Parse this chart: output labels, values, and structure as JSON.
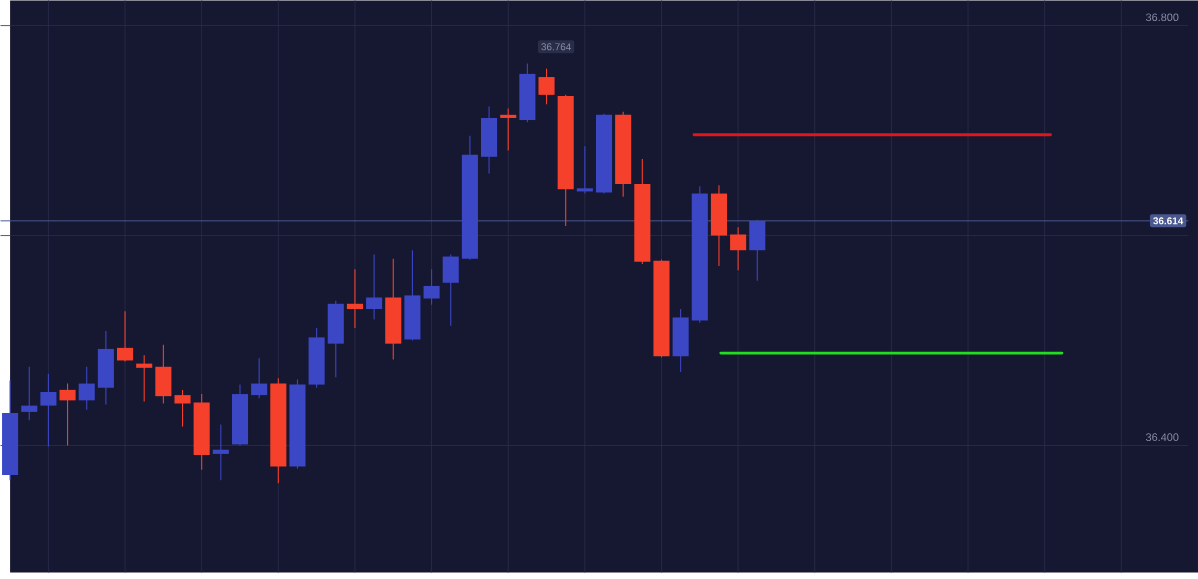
{
  "chart_data": {
    "type": "candlestick",
    "categories": [
      null,
      null,
      null,
      null,
      null,
      null,
      null,
      null,
      null,
      null,
      null,
      null,
      null,
      null,
      null,
      null,
      null,
      null,
      null,
      null,
      null,
      null,
      null,
      null,
      null,
      null,
      null,
      null,
      null,
      null,
      null,
      null,
      null,
      null,
      null,
      null,
      null,
      null,
      null,
      null,
      null,
      null,
      null,
      null,
      null,
      null,
      null,
      null,
      null,
      null,
      null,
      null,
      null,
      null,
      null,
      null,
      null,
      null,
      null,
      null,
      null,
      null
    ],
    "ohlc": [
      [
        36.372,
        36.462,
        36.367,
        36.431
      ],
      [
        36.432,
        36.475,
        36.424,
        36.438
      ],
      [
        36.438,
        36.468,
        36.399,
        36.451
      ],
      [
        36.453,
        36.459,
        36.4,
        36.443
      ],
      [
        36.443,
        36.475,
        36.434,
        36.459
      ],
      [
        36.455,
        36.509,
        36.439,
        36.492
      ],
      [
        36.493,
        36.528,
        36.48,
        36.481
      ],
      [
        36.478,
        36.486,
        36.442,
        36.474
      ],
      [
        36.475,
        36.496,
        36.44,
        36.447
      ],
      [
        36.448,
        36.453,
        36.418,
        36.44
      ],
      [
        36.441,
        36.449,
        36.377,
        36.391
      ],
      [
        36.392,
        36.42,
        36.367,
        36.396
      ],
      [
        36.401,
        36.458,
        36.4,
        36.449
      ],
      [
        36.448,
        36.483,
        36.445,
        36.459
      ],
      [
        36.459,
        36.464,
        36.364,
        36.38
      ],
      [
        36.38,
        36.463,
        36.378,
        36.458
      ],
      [
        36.458,
        36.512,
        36.455,
        36.503
      ],
      [
        36.497,
        36.538,
        36.465,
        36.535
      ],
      [
        36.535,
        36.568,
        36.512,
        36.53
      ],
      [
        36.53,
        36.582,
        36.52,
        36.541
      ],
      [
        36.541,
        36.578,
        36.482,
        36.497
      ],
      [
        36.501,
        36.586,
        36.5,
        36.543
      ],
      [
        36.54,
        36.568,
        36.534,
        36.552
      ],
      [
        36.555,
        36.582,
        36.514,
        36.58
      ],
      [
        36.578,
        36.695,
        36.577,
        36.677
      ],
      [
        36.675,
        36.723,
        36.659,
        36.712
      ],
      [
        36.715,
        36.721,
        36.681,
        36.712
      ],
      [
        36.71,
        36.764,
        36.708,
        36.754
      ],
      [
        36.751,
        36.759,
        36.725,
        36.734
      ],
      [
        36.733,
        36.734,
        36.609,
        36.644
      ],
      [
        36.642,
        36.685,
        36.64,
        36.645
      ],
      [
        36.641,
        36.716,
        36.64,
        36.715
      ],
      [
        36.715,
        36.718,
        36.637,
        36.649
      ],
      [
        36.649,
        36.673,
        36.573,
        36.575
      ],
      [
        36.576,
        36.577,
        36.484,
        36.485
      ],
      [
        36.485,
        36.53,
        36.47,
        36.522
      ],
      [
        36.519,
        36.647,
        36.517,
        36.64
      ],
      [
        36.64,
        36.648,
        36.571,
        36.6
      ],
      [
        36.601,
        36.608,
        36.567,
        36.586
      ],
      [
        36.586,
        36.615,
        36.557,
        36.614
      ],
      null,
      null,
      null,
      null,
      null,
      null,
      null,
      null,
      null,
      null,
      null,
      null,
      null,
      null,
      null,
      null,
      null,
      null,
      null,
      null,
      null,
      null
    ],
    "colors": [
      "#3b47c4",
      "#3b47c4",
      "#3b47c4",
      "#f5402c",
      "#3b47c4",
      "#3b47c4",
      "#f5402c",
      "#f5402c",
      "#f5402c",
      "#f5402c",
      "#f5402c",
      "#3b47c4",
      "#3b47c4",
      "#3b47c4",
      "#f5402c",
      "#3b47c4",
      "#3b47c4",
      "#3b47c4",
      "#f5402c",
      "#3b47c4",
      "#f5402c",
      "#3b47c4",
      "#3b47c4",
      "#3b47c4",
      "#3b47c4",
      "#3b47c4",
      "#f5402c",
      "#3b47c4",
      "#f5402c",
      "#f5402c",
      "#3b47c4",
      "#3b47c4",
      "#f5402c",
      "#f5402c",
      "#f5402c",
      "#3b47c4",
      "#3b47c4",
      "#f5402c",
      "#f5402c",
      "#3b47c4",
      null,
      null,
      null,
      null,
      null,
      null,
      null,
      null,
      null,
      null,
      null,
      null,
      null,
      null,
      null,
      null,
      null,
      null,
      null,
      null,
      null,
      null
    ],
    "ylim": [
      36.279,
      36.824
    ],
    "yticks": [
      {
        "value": 36.4,
        "label": "36.400"
      },
      {
        "value": 36.6,
        "label": null
      },
      {
        "value": 36.8,
        "label": "36.800"
      }
    ],
    "grid": true,
    "tick_labels": "y",
    "ref_lines": [
      {
        "axis": "y",
        "value": 36.614,
        "label": "36.614",
        "color": "#4a5890"
      },
      {
        "axis": "y",
        "value": 36.696,
        "color": "#e0161c"
      },
      {
        "axis": "y",
        "value": 36.488,
        "color": "#22dd22"
      }
    ],
    "annotations": [
      "36.764"
    ]
  }
}
